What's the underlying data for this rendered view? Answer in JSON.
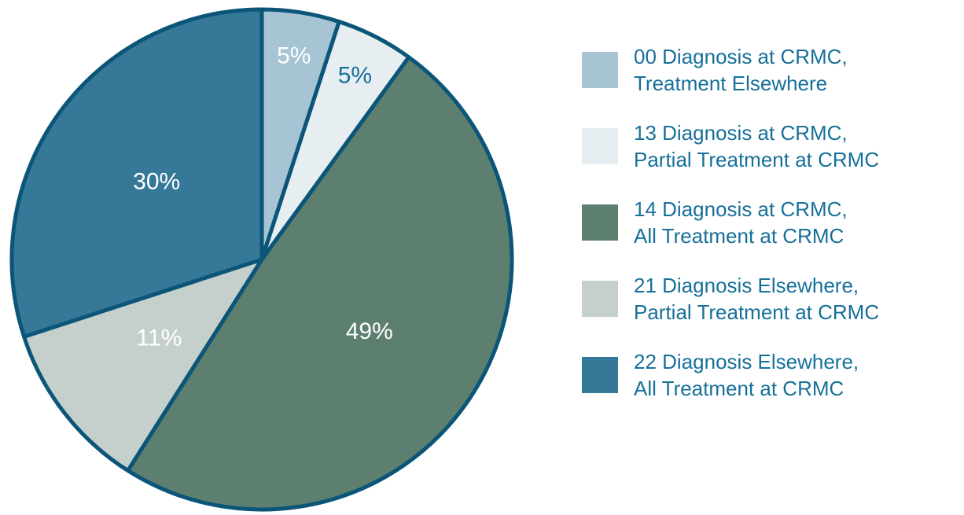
{
  "chart_data": {
    "type": "pie",
    "categories": [
      "00 Diagnosis at CRMC,\nTreatment Elsewhere",
      "13 Diagnosis at CRMC,\nPartial Treatment at CRMC",
      "14 Diagnosis at CRMC,\nAll Treatment at CRMC",
      "21 Diagnosis Elsewhere,\nPartial Treatment at CRMC",
      "22 Diagnosis Elsewhere,\nAll Treatment at CRMC"
    ],
    "values": [
      5,
      5,
      49,
      11,
      30
    ],
    "value_labels": [
      "5%",
      "5%",
      "49%",
      "11%",
      "30%"
    ],
    "colors": [
      "#a6c4d3",
      "#e6eef2",
      "#5c7f70",
      "#c5d0cc",
      "#357898"
    ],
    "legend": "right"
  }
}
